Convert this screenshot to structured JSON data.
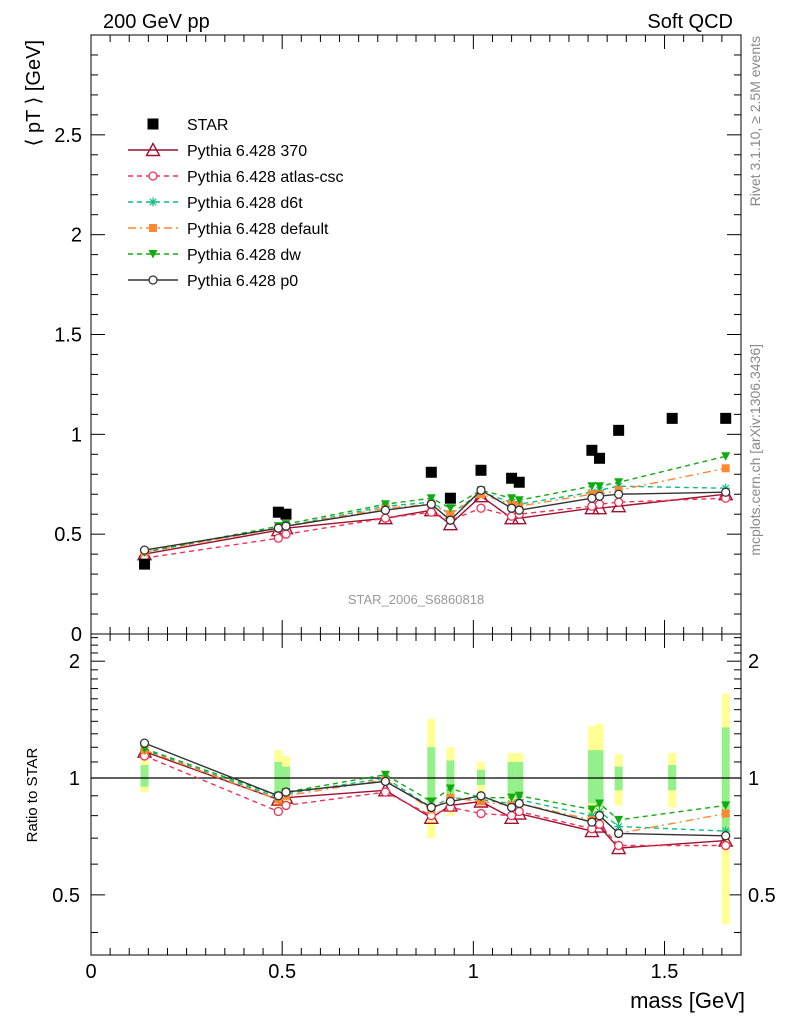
{
  "header": {
    "left": "200 GeV pp",
    "right": "Soft QCD",
    "watermark_right": "STAR_2006_S6860818",
    "side_text_top": "Rivet 3.1.10, ≥ 2.5M events",
    "side_text_bottom": "mcplots.cern.ch [arXiv:1306.3436]"
  },
  "chart_data": [
    {
      "type": "line",
      "title": "",
      "ylabel": "⟨ pT ⟩ [GeV]",
      "xlim": [
        0,
        1.7
      ],
      "ylim": [
        0,
        3.0
      ],
      "x_ticks": [
        "0",
        "0.5",
        "1",
        "1.5"
      ],
      "y_ticks": [
        "0.5",
        "1",
        "1.5",
        "2",
        "2.5"
      ],
      "legend_position": "top-left",
      "data": {
        "name": "STAR",
        "x": [
          0.14,
          0.49,
          0.51,
          0.89,
          0.94,
          1.02,
          1.1,
          1.12,
          1.31,
          1.33,
          1.38,
          1.52,
          1.66
        ],
        "y": [
          0.35,
          0.61,
          0.6,
          0.81,
          0.68,
          0.82,
          0.78,
          0.76,
          0.92,
          0.88,
          1.02,
          1.08,
          1.08
        ]
      },
      "series": [
        {
          "name": "Pythia 6.428 370",
          "color": "#a01030",
          "dash": "",
          "marker": "triangle-open",
          "x": [
            0.14,
            0.49,
            0.51,
            0.77,
            0.89,
            0.94,
            1.02,
            1.1,
            1.12,
            1.31,
            1.33,
            1.38,
            1.66
          ],
          "y": [
            0.4,
            0.52,
            0.53,
            0.58,
            0.62,
            0.55,
            0.69,
            0.58,
            0.58,
            0.63,
            0.63,
            0.64,
            0.7
          ]
        },
        {
          "name": "Pythia 6.428 atlas-csc",
          "color": "#ee3355",
          "dash": "5,4",
          "marker": "circle-open",
          "x": [
            0.14,
            0.49,
            0.51,
            0.77,
            0.89,
            0.94,
            1.02,
            1.1,
            1.12,
            1.31,
            1.33,
            1.38,
            1.66
          ],
          "y": [
            0.38,
            0.48,
            0.5,
            0.58,
            0.61,
            0.57,
            0.63,
            0.59,
            0.6,
            0.64,
            0.65,
            0.66,
            0.68
          ]
        },
        {
          "name": "Pythia 6.428 d6t",
          "color": "#11bb88",
          "dash": "5,4",
          "marker": "star",
          "x": [
            0.14,
            0.49,
            0.51,
            0.77,
            0.89,
            0.94,
            1.02,
            1.1,
            1.12,
            1.31,
            1.33,
            1.38,
            1.66
          ],
          "y": [
            0.41,
            0.53,
            0.54,
            0.64,
            0.66,
            0.6,
            0.71,
            0.66,
            0.65,
            0.71,
            0.72,
            0.74,
            0.73
          ]
        },
        {
          "name": "Pythia 6.428 default",
          "color": "#ff8833",
          "dash": "8,4,2,4",
          "marker": "square",
          "x": [
            0.14,
            0.49,
            0.51,
            0.77,
            0.89,
            0.94,
            1.02,
            1.1,
            1.12,
            1.31,
            1.33,
            1.38,
            1.66
          ],
          "y": [
            0.41,
            0.53,
            0.54,
            0.63,
            0.65,
            0.6,
            0.7,
            0.65,
            0.64,
            0.7,
            0.7,
            0.72,
            0.83
          ]
        },
        {
          "name": "Pythia 6.428 dw",
          "color": "#11aa11",
          "dash": "5,4",
          "marker": "triangle-down",
          "x": [
            0.14,
            0.49,
            0.51,
            0.77,
            0.89,
            0.94,
            1.02,
            1.1,
            1.12,
            1.31,
            1.33,
            1.38,
            1.66
          ],
          "y": [
            0.41,
            0.54,
            0.55,
            0.65,
            0.68,
            0.63,
            0.72,
            0.68,
            0.67,
            0.74,
            0.74,
            0.76,
            0.89
          ]
        },
        {
          "name": "Pythia 6.428 p0",
          "color": "#333333",
          "dash": "",
          "marker": "circle-open",
          "x": [
            0.14,
            0.49,
            0.51,
            0.77,
            0.89,
            0.94,
            1.02,
            1.1,
            1.12,
            1.31,
            1.33,
            1.38,
            1.66
          ],
          "y": [
            0.42,
            0.53,
            0.54,
            0.62,
            0.65,
            0.57,
            0.72,
            0.63,
            0.62,
            0.68,
            0.69,
            0.7,
            0.71
          ]
        }
      ]
    },
    {
      "type": "line",
      "title": "",
      "xlabel": "mass [GeV]",
      "ylabel": "Ratio to STAR",
      "xlim": [
        0,
        1.7
      ],
      "ylim": [
        0.35,
        2.35
      ],
      "x_ticks": [
        "0",
        "0.5",
        "1",
        "1.5"
      ],
      "y_ticks": [
        "0.5",
        "1",
        "2"
      ],
      "reference_line": 1,
      "bands": {
        "x": [
          0.14,
          0.49,
          0.51,
          0.89,
          0.94,
          1.02,
          1.1,
          1.12,
          1.31,
          1.33,
          1.38,
          1.52,
          1.66
        ],
        "inner": [
          [
            0.95,
            1.08
          ],
          [
            0.9,
            1.1
          ],
          [
            0.92,
            1.07
          ],
          [
            0.82,
            1.2
          ],
          [
            0.88,
            1.11
          ],
          [
            0.96,
            1.05
          ],
          [
            0.9,
            1.1
          ],
          [
            0.9,
            1.1
          ],
          [
            0.86,
            1.18
          ],
          [
            0.84,
            1.18
          ],
          [
            0.93,
            1.07
          ],
          [
            0.93,
            1.08
          ],
          [
            0.73,
            1.35
          ]
        ],
        "outer": [
          [
            0.92,
            1.12
          ],
          [
            0.84,
            1.18
          ],
          [
            0.86,
            1.14
          ],
          [
            0.7,
            1.42
          ],
          [
            0.8,
            1.2
          ],
          [
            0.92,
            1.1
          ],
          [
            0.84,
            1.16
          ],
          [
            0.84,
            1.16
          ],
          [
            0.78,
            1.36
          ],
          [
            0.76,
            1.38
          ],
          [
            0.85,
            1.15
          ],
          [
            0.84,
            1.16
          ],
          [
            0.42,
            1.65
          ]
        ]
      },
      "series": [
        {
          "name": "Pythia 6.428 370",
          "color": "#a01030",
          "dash": "",
          "marker": "triangle-open",
          "x": [
            0.14,
            0.49,
            0.51,
            0.77,
            0.89,
            0.94,
            1.02,
            1.1,
            1.12,
            1.31,
            1.33,
            1.38,
            1.66
          ],
          "y": [
            1.17,
            0.88,
            0.89,
            0.93,
            0.79,
            0.85,
            0.87,
            0.79,
            0.81,
            0.73,
            0.75,
            0.66,
            0.69
          ]
        },
        {
          "name": "Pythia 6.428 atlas-csc",
          "color": "#ee3355",
          "dash": "5,4",
          "marker": "circle-open",
          "x": [
            0.14,
            0.49,
            0.51,
            0.77,
            0.89,
            0.94,
            1.02,
            1.1,
            1.12,
            1.31,
            1.33,
            1.38,
            1.66
          ],
          "y": [
            1.14,
            0.82,
            0.85,
            0.92,
            0.8,
            0.84,
            0.81,
            0.8,
            0.82,
            0.74,
            0.76,
            0.67,
            0.67
          ]
        },
        {
          "name": "Pythia 6.428 d6t",
          "color": "#11bb88",
          "dash": "5,4",
          "marker": "star",
          "x": [
            0.14,
            0.49,
            0.51,
            0.77,
            0.89,
            0.94,
            1.02,
            1.1,
            1.12,
            1.31,
            1.33,
            1.38,
            1.66
          ],
          "y": [
            1.18,
            0.89,
            0.91,
            1.0,
            0.84,
            0.89,
            0.88,
            0.86,
            0.88,
            0.8,
            0.82,
            0.75,
            0.73
          ]
        },
        {
          "name": "Pythia 6.428 default",
          "color": "#ff8833",
          "dash": "8,4,2,4",
          "marker": "square",
          "x": [
            0.14,
            0.49,
            0.51,
            0.77,
            0.89,
            0.94,
            1.02,
            1.1,
            1.12,
            1.31,
            1.33,
            1.38,
            1.66
          ],
          "y": [
            1.18,
            0.88,
            0.9,
            0.99,
            0.83,
            0.89,
            0.87,
            0.85,
            0.86,
            0.78,
            0.8,
            0.72,
            0.81
          ]
        },
        {
          "name": "Pythia 6.428 dw",
          "color": "#11aa11",
          "dash": "5,4",
          "marker": "triangle-down",
          "x": [
            0.14,
            0.49,
            0.51,
            0.77,
            0.89,
            0.94,
            1.02,
            1.1,
            1.12,
            1.31,
            1.33,
            1.38,
            1.66
          ],
          "y": [
            1.19,
            0.9,
            0.92,
            1.02,
            0.87,
            0.94,
            0.89,
            0.89,
            0.9,
            0.83,
            0.86,
            0.78,
            0.85
          ]
        },
        {
          "name": "Pythia 6.428 p0",
          "color": "#333333",
          "dash": "",
          "marker": "circle-open",
          "x": [
            0.14,
            0.49,
            0.51,
            0.77,
            0.89,
            0.94,
            1.02,
            1.1,
            1.12,
            1.31,
            1.33,
            1.38,
            1.66
          ],
          "y": [
            1.23,
            0.9,
            0.92,
            0.98,
            0.84,
            0.87,
            0.9,
            0.84,
            0.86,
            0.77,
            0.8,
            0.72,
            0.71
          ]
        }
      ]
    }
  ]
}
